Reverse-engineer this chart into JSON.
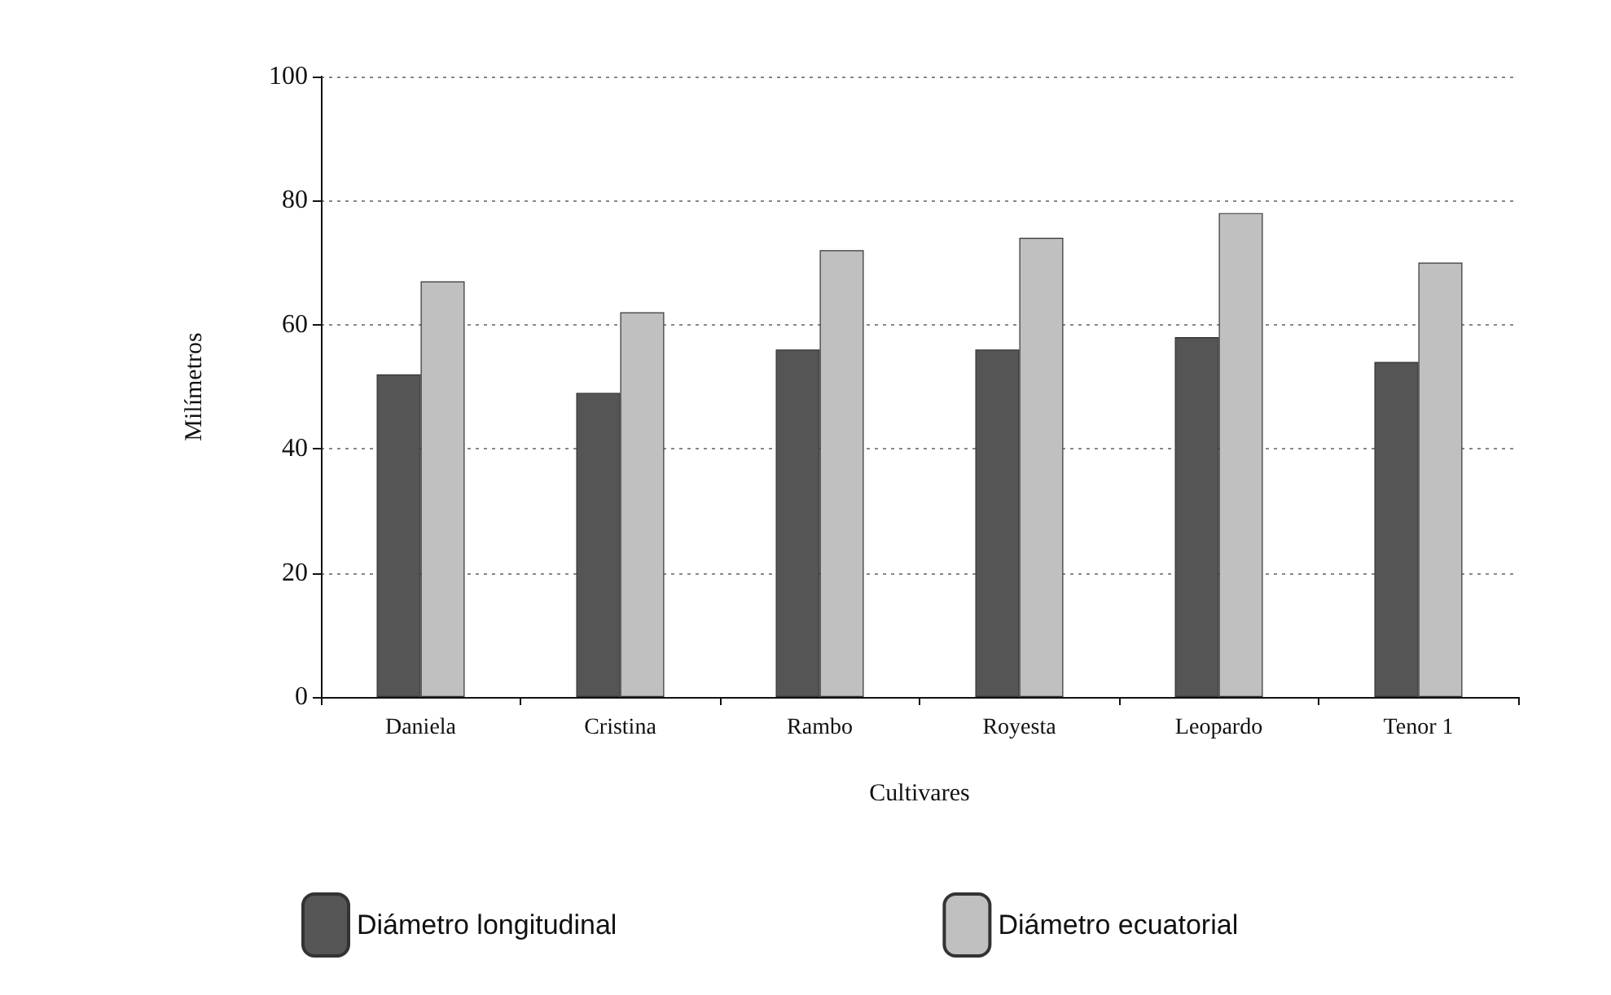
{
  "chart_data": {
    "type": "bar",
    "xlabel": "Cultivares",
    "ylabel": "Milímetros",
    "categories": [
      "Daniela",
      "Cristina",
      "Rambo",
      "Royesta",
      "Leopardo",
      "Tenor 1"
    ],
    "series": [
      {
        "name": "Diámetro longitudinal",
        "color": "#555555",
        "values": [
          52,
          49,
          56,
          56,
          58,
          54
        ]
      },
      {
        "name": "Diámetro ecuatorial",
        "color": "#c0c0c0",
        "values": [
          67,
          62,
          72,
          74,
          78,
          70
        ]
      }
    ],
    "ylim": [
      0,
      100
    ],
    "yticks": [
      0,
      20,
      40,
      60,
      80,
      100
    ],
    "grid": "y",
    "legend": "bottom"
  }
}
